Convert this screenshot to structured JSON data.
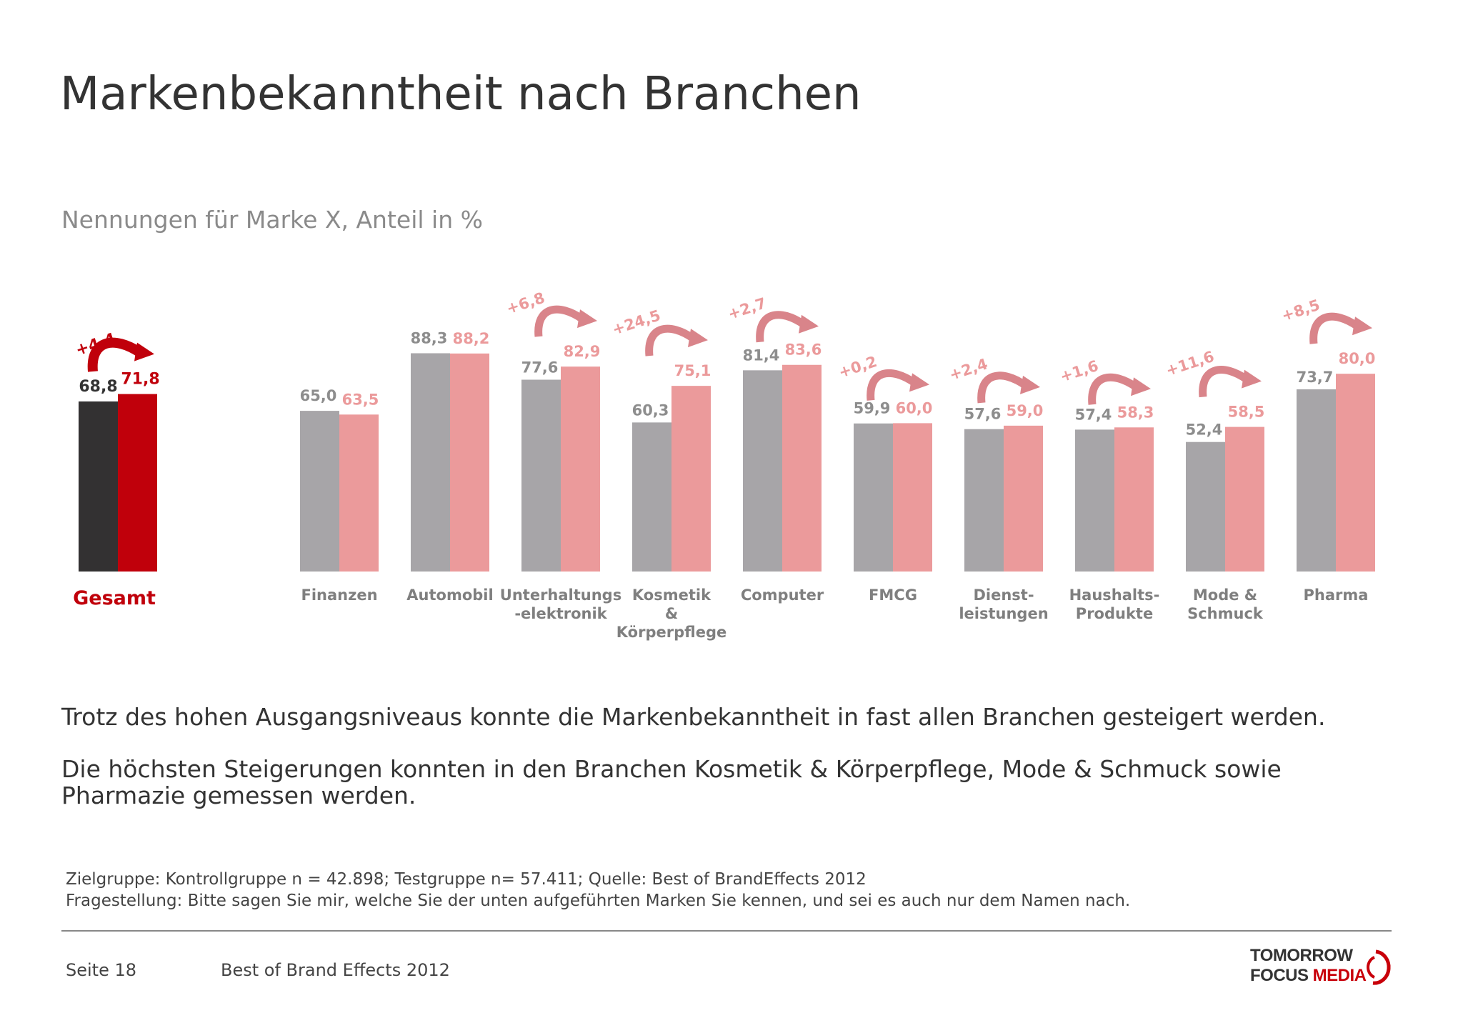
{
  "header": {
    "title": "Markenbekanntheit nach Branchen",
    "subtitle": "Nennungen für Marke X, Anteil in %"
  },
  "colors": {
    "total_control": "#333132",
    "total_test": "#c0000b",
    "control": "#a7a5a8",
    "test": "#eb9a9b",
    "total_label": "#c0000b",
    "category_label": "#7f7f7f"
  },
  "chart_data": {
    "type": "bar",
    "series": [
      {
        "name": "Kontrollgruppe"
      },
      {
        "name": "Testgruppe"
      }
    ],
    "total": {
      "category": "Gesamt",
      "control": 68.8,
      "test": 71.8,
      "control_label": "68,8",
      "test_label": "71,8",
      "delta_label": "+4,4"
    },
    "categories": [
      {
        "label": [
          "Finanzen"
        ],
        "control": 65.0,
        "test": 63.5,
        "control_label": "65,0",
        "test_label": "63,5",
        "delta_label": ""
      },
      {
        "label": [
          "Automobil"
        ],
        "control": 88.3,
        "test": 88.2,
        "control_label": "88,3",
        "test_label": "88,2",
        "delta_label": ""
      },
      {
        "label": [
          "Unterhaltungs",
          "-elektronik"
        ],
        "control": 77.6,
        "test": 82.9,
        "control_label": "77,6",
        "test_label": "82,9",
        "delta_label": "+6,8"
      },
      {
        "label": [
          "Kosmetik",
          "&",
          "Körperpflege"
        ],
        "control": 60.3,
        "test": 75.1,
        "control_label": "60,3",
        "test_label": "75,1",
        "delta_label": "+24,5"
      },
      {
        "label": [
          "Computer"
        ],
        "control": 81.4,
        "test": 83.6,
        "control_label": "81,4",
        "test_label": "83,6",
        "delta_label": "+2,7"
      },
      {
        "label": [
          "FMCG"
        ],
        "control": 59.9,
        "test": 60.0,
        "control_label": "59,9",
        "test_label": "60,0",
        "delta_label": "+0,2"
      },
      {
        "label": [
          "Dienst-",
          "leistungen"
        ],
        "control": 57.6,
        "test": 59.0,
        "control_label": "57,6",
        "test_label": "59,0",
        "delta_label": "+2,4"
      },
      {
        "label": [
          "Haushalts-",
          "Produkte"
        ],
        "control": 57.4,
        "test": 58.3,
        "control_label": "57,4",
        "test_label": "58,3",
        "delta_label": "+1,6"
      },
      {
        "label": [
          "Mode &",
          "Schmuck"
        ],
        "control": 52.4,
        "test": 58.5,
        "control_label": "52,4",
        "test_label": "58,5",
        "delta_label": "+11,6"
      },
      {
        "label": [
          "Pharma"
        ],
        "control": 73.7,
        "test": 80.0,
        "control_label": "73,7",
        "test_label": "80,0",
        "delta_label": "+8,5"
      }
    ],
    "ylim": [
      0,
      100
    ],
    "grid": false,
    "legend": "none"
  },
  "body": {
    "paragraph1": "Trotz des hohen Ausgangsniveaus konnte die Markenbekanntheit in fast allen Branchen gesteigert werden.",
    "paragraph2": "Die höchsten Steigerungen konnten in den Branchen Kosmetik & Körperpflege, Mode & Schmuck sowie Pharmazie gemessen werden."
  },
  "footnotes": {
    "line1": "Zielgruppe: Kontrollgruppe n = 42.898; Testgruppe n= 57.411; Quelle: Best of BrandEffects 2012",
    "line2": "Fragestellung: Bitte sagen Sie mir, welche Sie der unten aufgeführten Marken Sie kennen, und sei es auch nur dem Namen nach."
  },
  "footer": {
    "page": "Seite 18",
    "doc": "Best of Brand Effects 2012",
    "logo_line1": "TOMORROW",
    "logo_line2_a": "FOCUS ",
    "logo_line2_b": "MEDIA"
  }
}
